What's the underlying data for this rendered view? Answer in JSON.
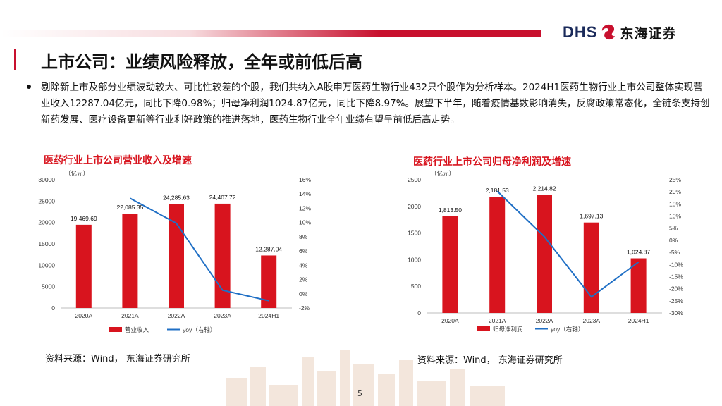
{
  "brand": {
    "logo_en": "DHS",
    "logo_cn": "东海证券",
    "accent": "#c8102e"
  },
  "slide": {
    "title": "上市公司：业绩风险释放，全年或前低后高",
    "bullet": "剔除新上市及部分业绩波动较大、可比性较差的个股，我们共纳入A股申万医药生物行业432只个股作为分析样本。2024H1医药生物行业上市公司整体实现营业收入12287.04亿元，同比下降0.98%；归母净利润1024.87亿元，同比下降8.97%。展望下半年，随着疫情基数影响消失，反腐政策常态化，全链条支持创新药发展、医疗设备更新等行业利好政策的推进落地，医药生物行业全年业绩有望呈前低后高走势。",
    "page_number": "5"
  },
  "charts": [
    {
      "title": "医药行业上市公司营业收入及增速",
      "source": "资料来源：Wind， 东海证券研究所"
    },
    {
      "title": "医药行业上市公司归母净利润及增速",
      "source": "资料来源：Wind， 东海证券研究所"
    }
  ],
  "chart_data": [
    {
      "type": "bar",
      "title": "医药行业上市公司营业收入及增速",
      "unit_label": "（亿元）",
      "categories": [
        "2020A",
        "2021A",
        "2022A",
        "2023A",
        "2024H1"
      ],
      "series": [
        {
          "name": "营业收入",
          "type": "bar",
          "axis": "left",
          "color": "#d8141e",
          "values": [
            19469.69,
            22085.35,
            24285.63,
            24407.72,
            12287.04
          ],
          "labels": [
            "19,469.69",
            "22,085.35",
            "24,285.63",
            "24,407.72",
            "12,287.04"
          ]
        },
        {
          "name": "yoy（右轴）",
          "type": "line",
          "axis": "right",
          "color": "#1f6fc5",
          "values": [
            null,
            13.4,
            9.9,
            0.5,
            -0.98
          ]
        }
      ],
      "ylim_left": [
        0,
        30000
      ],
      "yticks_left": [
        "0",
        "5000",
        "10000",
        "15000",
        "20000",
        "25000",
        "30000"
      ],
      "ylim_right": [
        -2,
        16
      ],
      "yticks_right": [
        "-2%",
        "0%",
        "2%",
        "4%",
        "6%",
        "8%",
        "10%",
        "12%",
        "14%",
        "16%"
      ],
      "legend": "bottom",
      "grid": false
    },
    {
      "type": "bar",
      "title": "医药行业上市公司归母净利润及增速",
      "unit_label": "（亿元）",
      "categories": [
        "2020A",
        "2021A",
        "2022A",
        "2023A",
        "2024H1"
      ],
      "series": [
        {
          "name": "归母净利润",
          "type": "bar",
          "axis": "left",
          "color": "#d8141e",
          "values": [
            1813.5,
            2181.53,
            2214.82,
            1697.13,
            1024.87
          ],
          "labels": [
            "1,813.50",
            "2,181.53",
            "2,214.82",
            "1,697.13",
            "1,024.87"
          ]
        },
        {
          "name": "yoy（右轴）",
          "type": "line",
          "axis": "right",
          "color": "#1f6fc5",
          "values": [
            null,
            20.3,
            1.5,
            -23.4,
            -8.97
          ]
        }
      ],
      "ylim_left": [
        0,
        2500
      ],
      "yticks_left": [
        "0",
        "500",
        "1000",
        "1500",
        "2000",
        "2500"
      ],
      "ylim_right": [
        -30,
        25
      ],
      "yticks_right": [
        "-30%",
        "-25%",
        "-20%",
        "-15%",
        "-10%",
        "-5%",
        "0%",
        "5%",
        "10%",
        "15%",
        "20%",
        "25%"
      ],
      "legend": "bottom",
      "grid": false
    }
  ]
}
